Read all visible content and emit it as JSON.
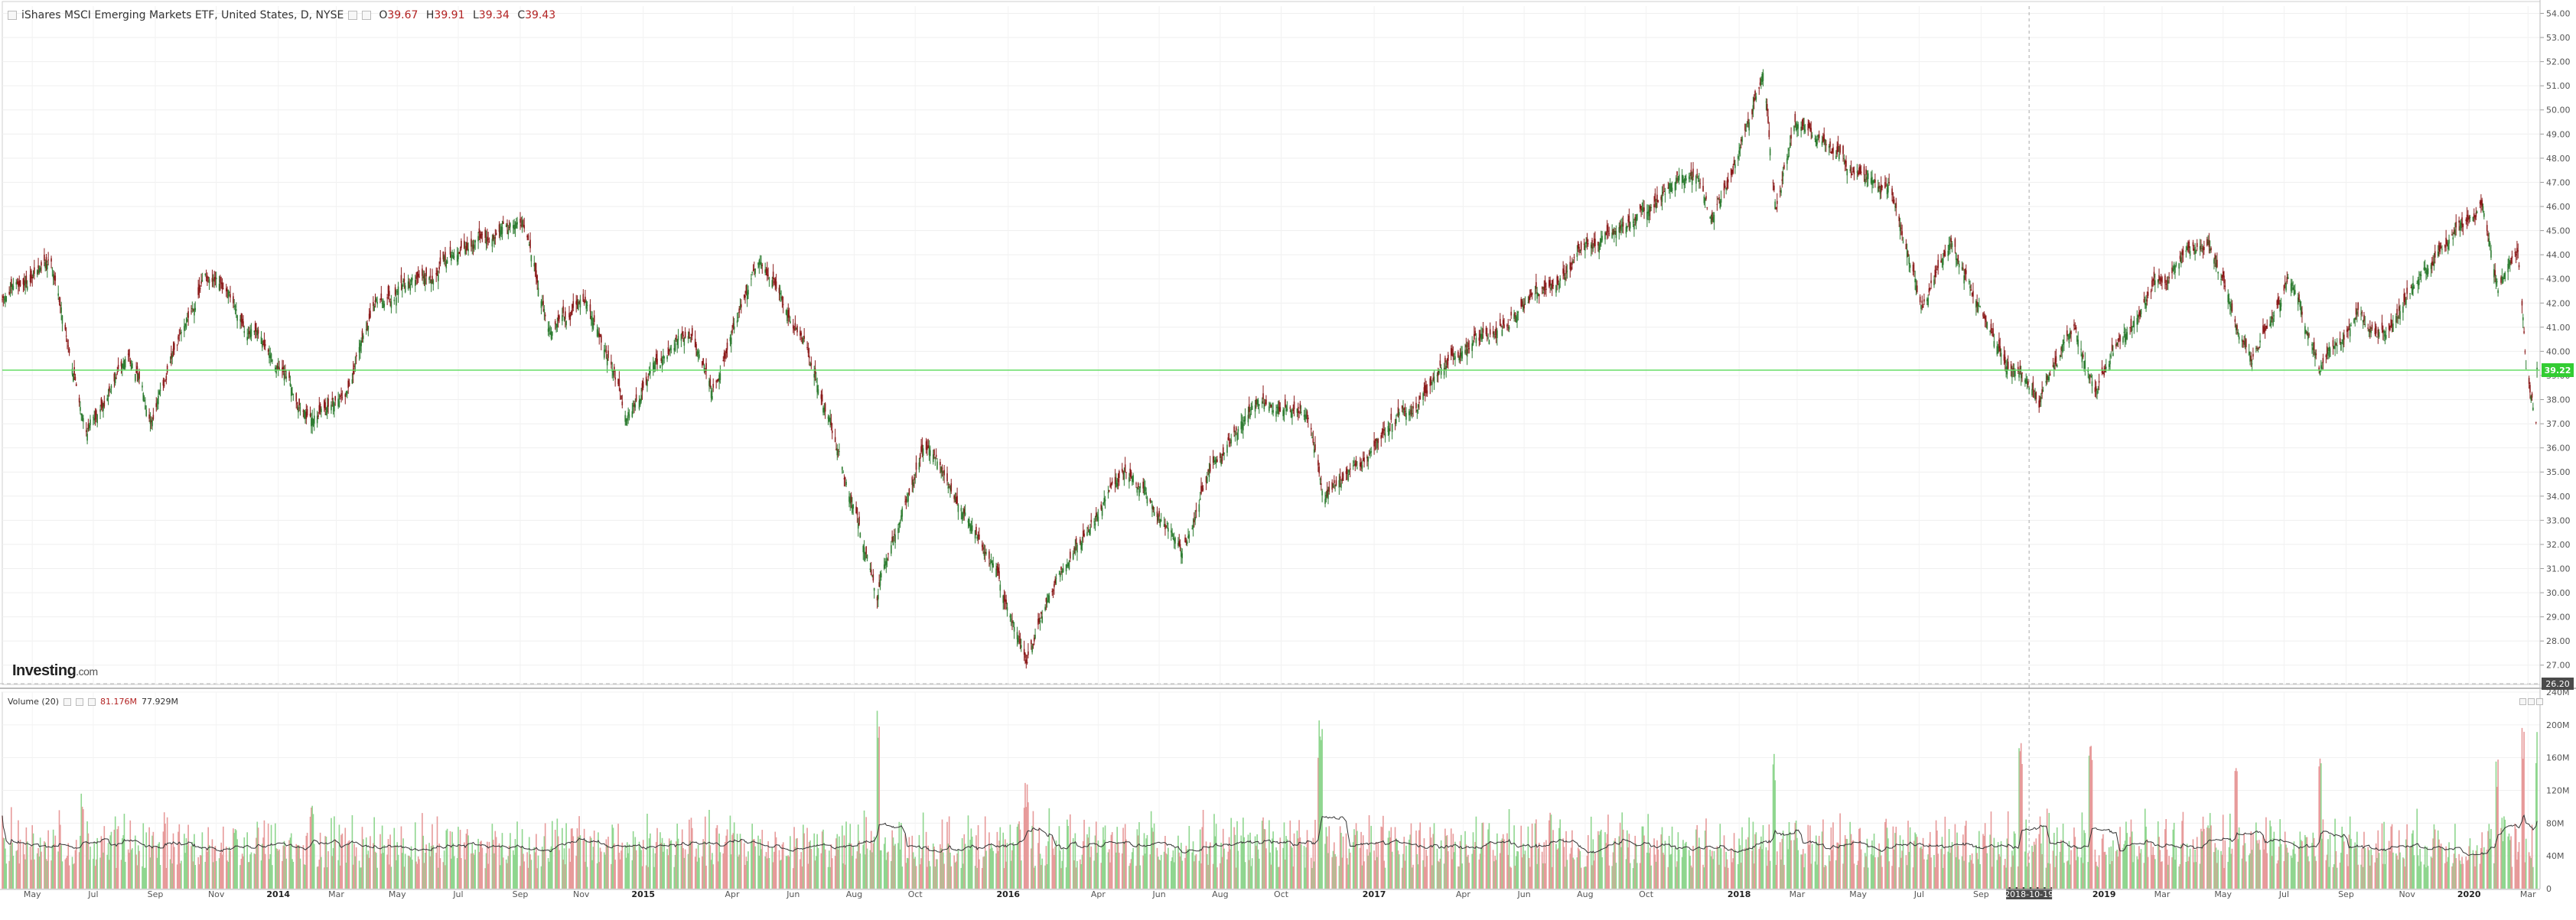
{
  "header": {
    "title": "iShares MSCI Emerging Markets ETF, United States, D, NYSE",
    "open_label": "O",
    "open": "39.67",
    "high_label": "H",
    "high": "39.91",
    "low_label": "L",
    "low": "39.34",
    "close_label": "C",
    "close": "39.43"
  },
  "volume_legend": {
    "label": "Volume (20)",
    "value": "81.176M",
    "ma_value": "77.929M"
  },
  "logo": {
    "brand": "Investing",
    "domain": ".com"
  },
  "colors": {
    "up": "#2e7d32",
    "down": "#8b1a1a",
    "vol_up": "#8fd68f",
    "vol_down": "#e79a9a",
    "price_line": "#66dd66",
    "last_price_bg": "#33cc33",
    "crosshair_label_bg": "#4a4a4a"
  },
  "price_axis": {
    "ticks": [
      "54.00",
      "53.00",
      "52.00",
      "51.00",
      "50.00",
      "49.00",
      "48.00",
      "47.00",
      "46.00",
      "45.00",
      "44.00",
      "43.00",
      "42.00",
      "41.00",
      "40.00",
      "39.00",
      "38.00",
      "37.00",
      "36.00",
      "35.00",
      "34.00",
      "33.00",
      "32.00",
      "31.00",
      "30.00",
      "29.00",
      "28.00",
      "27.00"
    ],
    "last_price_label": "39.22",
    "low_marker_label": "26.20"
  },
  "volume_axis": {
    "ticks": [
      "240M",
      "200M",
      "160M",
      "120M",
      "80M",
      "40M",
      "0"
    ]
  },
  "time_axis": {
    "labels": [
      "May",
      "Jul",
      "Sep",
      "Nov",
      "2014",
      "Mar",
      "May",
      "Jul",
      "Sep",
      "Nov",
      "2015",
      "Apr",
      "Jun",
      "Aug",
      "Oct",
      "2016",
      "Apr",
      "Jun",
      "Aug",
      "Oct",
      "2017",
      "Apr",
      "Jun",
      "Aug",
      "Oct",
      "2018",
      "Mar",
      "May",
      "Jul",
      "Sep",
      "2018-10-19",
      "2019",
      "Mar",
      "May",
      "Jul",
      "Sep",
      "Nov",
      "2020",
      "Mar"
    ],
    "bold": [
      "2014",
      "2015",
      "2016",
      "2017",
      "2018",
      "2019",
      "2020"
    ],
    "crosshair_label": "2018-10-19"
  },
  "chart_data": {
    "type": "candlestick",
    "title": "iShares MSCI Emerging Markets ETF, United States, D, NYSE",
    "ylim": [
      26.2,
      54.3
    ],
    "volume_ylim": [
      0,
      240
    ],
    "volume_unit": "M",
    "last_price": 39.22,
    "grid": true,
    "price_path": [
      {
        "x": "2013-04-01",
        "y": 42.0
      },
      {
        "x": "2013-05-20",
        "y": 43.8
      },
      {
        "x": "2013-06-24",
        "y": 36.8
      },
      {
        "x": "2013-08-05",
        "y": 39.8
      },
      {
        "x": "2013-08-28",
        "y": 37.4
      },
      {
        "x": "2013-10-21",
        "y": 43.2
      },
      {
        "x": "2013-12-10",
        "y": 40.6
      },
      {
        "x": "2014-02-03",
        "y": 37.2
      },
      {
        "x": "2014-03-12",
        "y": 38.6
      },
      {
        "x": "2014-04-10",
        "y": 42.0
      },
      {
        "x": "2014-06-10",
        "y": 43.6
      },
      {
        "x": "2014-09-03",
        "y": 45.5
      },
      {
        "x": "2014-10-01",
        "y": 41.0
      },
      {
        "x": "2014-11-05",
        "y": 42.2
      },
      {
        "x": "2014-12-16",
        "y": 37.5
      },
      {
        "x": "2015-01-12",
        "y": 39.0
      },
      {
        "x": "2015-02-20",
        "y": 40.8
      },
      {
        "x": "2015-03-12",
        "y": 38.6
      },
      {
        "x": "2015-04-28",
        "y": 44.0
      },
      {
        "x": "2015-06-08",
        "y": 40.6
      },
      {
        "x": "2015-07-08",
        "y": 37.0
      },
      {
        "x": "2015-08-24",
        "y": 30.0
      },
      {
        "x": "2015-10-09",
        "y": 36.2
      },
      {
        "x": "2015-12-14",
        "y": 31.5
      },
      {
        "x": "2016-01-20",
        "y": 27.4
      },
      {
        "x": "2016-03-01",
        "y": 31.5
      },
      {
        "x": "2016-04-28",
        "y": 35.0
      },
      {
        "x": "2016-06-24",
        "y": 32.0
      },
      {
        "x": "2016-07-28",
        "y": 35.4
      },
      {
        "x": "2016-09-08",
        "y": 37.8
      },
      {
        "x": "2016-10-26",
        "y": 37.5
      },
      {
        "x": "2016-11-14",
        "y": 34.0
      },
      {
        "x": "2017-01-04",
        "y": 36.0
      },
      {
        "x": "2017-03-15",
        "y": 39.5
      },
      {
        "x": "2017-05-10",
        "y": 41.0
      },
      {
        "x": "2017-07-20",
        "y": 43.8
      },
      {
        "x": "2017-10-02",
        "y": 46.0
      },
      {
        "x": "2017-11-20",
        "y": 47.6
      },
      {
        "x": "2017-12-06",
        "y": 45.0
      },
      {
        "x": "2018-01-26",
        "y": 51.8
      },
      {
        "x": "2018-02-08",
        "y": 45.8
      },
      {
        "x": "2018-02-27",
        "y": 49.5
      },
      {
        "x": "2018-04-18",
        "y": 47.8
      },
      {
        "x": "2018-06-01",
        "y": 46.8
      },
      {
        "x": "2018-07-05",
        "y": 42.0
      },
      {
        "x": "2018-08-03",
        "y": 44.5
      },
      {
        "x": "2018-09-12",
        "y": 40.8
      },
      {
        "x": "2018-10-29",
        "y": 37.8
      },
      {
        "x": "2018-12-03",
        "y": 41.0
      },
      {
        "x": "2018-12-24",
        "y": 38.2
      },
      {
        "x": "2019-02-20",
        "y": 43.0
      },
      {
        "x": "2019-04-16",
        "y": 44.4
      },
      {
        "x": "2019-05-30",
        "y": 39.8
      },
      {
        "x": "2019-07-05",
        "y": 43.2
      },
      {
        "x": "2019-08-05",
        "y": 39.0
      },
      {
        "x": "2019-09-12",
        "y": 41.8
      },
      {
        "x": "2019-10-02",
        "y": 40.2
      },
      {
        "x": "2019-11-18",
        "y": 43.2
      },
      {
        "x": "2020-01-16",
        "y": 46.2
      },
      {
        "x": "2020-01-31",
        "y": 42.8
      },
      {
        "x": "2020-02-20",
        "y": 44.2
      },
      {
        "x": "2020-02-28",
        "y": 39.5
      },
      {
        "x": "2020-03-09",
        "y": 37.1
      },
      {
        "x": "2020-03-10",
        "y": 39.2
      }
    ],
    "volume_spikes": [
      {
        "x": "2013-06-21",
        "v": 120,
        "dir": "down"
      },
      {
        "x": "2014-02-03",
        "v": 110,
        "dir": "down"
      },
      {
        "x": "2015-08-24",
        "v": 220,
        "dir": "up"
      },
      {
        "x": "2016-01-20",
        "v": 130,
        "dir": "down"
      },
      {
        "x": "2016-11-09",
        "v": 210,
        "dir": "up"
      },
      {
        "x": "2018-02-05",
        "v": 175,
        "dir": "up"
      },
      {
        "x": "2018-10-11",
        "v": 190,
        "dir": "down"
      },
      {
        "x": "2018-12-20",
        "v": 205,
        "dir": "down"
      },
      {
        "x": "2019-05-13",
        "v": 150,
        "dir": "down"
      },
      {
        "x": "2019-08-05",
        "v": 175,
        "dir": "down"
      },
      {
        "x": "2020-01-31",
        "v": 165,
        "dir": "down"
      },
      {
        "x": "2020-02-24",
        "v": 200,
        "dir": "down"
      },
      {
        "x": "2020-03-09",
        "v": 200,
        "dir": "up"
      }
    ],
    "volume_typical_range": [
      25,
      100
    ],
    "moving_average_period": 20
  }
}
